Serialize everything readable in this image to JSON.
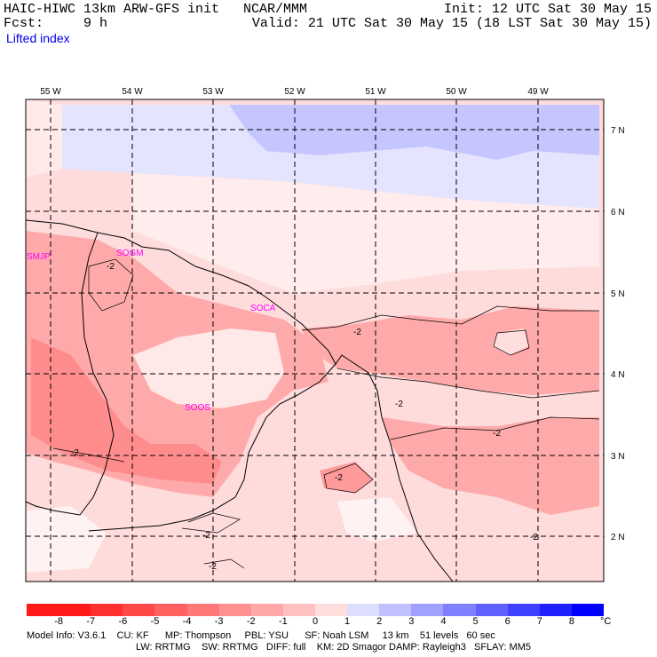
{
  "header": {
    "line1_left": "HAIC-HIWC 13km ARW-GFS init   NCAR/MMM",
    "line1_right": "Init: 12 UTC Sat 30 May 15",
    "line2_left": "Fcst:     9 h",
    "line2_right": "Valid: 21 UTC Sat 30 May 15 (18 LST Sat 30 May 15)",
    "field": "Lifted index"
  },
  "map": {
    "lon_labels": [
      "55 W",
      "54 W",
      "53 W",
      "52 W",
      "51 W",
      "50 W",
      "49 W"
    ],
    "lat_labels": [
      "7 N",
      "6 N",
      "5 N",
      "4 N",
      "3 N",
      "2 N"
    ],
    "stations": [
      "SMJP",
      "SOGM",
      "SOCA",
      "SOOS"
    ],
    "contour_label": "-2"
  },
  "colorbar": {
    "ticks": [
      "-8",
      "-7",
      "-6",
      "-5",
      "-4",
      "-3",
      "-2",
      "-1",
      "0",
      "1",
      "2",
      "3",
      "4",
      "5",
      "6",
      "7",
      "8"
    ],
    "unit": "°C",
    "colors": [
      "#ff1a1a",
      "#ff3030",
      "#ff4848",
      "#ff6060",
      "#ff7878",
      "#ff9090",
      "#ffa8a8",
      "#ffc0c0",
      "#ffdede",
      "#dedeff",
      "#c0c0ff",
      "#a0a0ff",
      "#8080ff",
      "#6060ff",
      "#4040ff",
      "#2020ff",
      "#0000ff"
    ]
  },
  "model_info": {
    "line1": "Model Info: V3.6.1    CU: KF      MP: Thompson     PBL: YSU      SF: Noah LSM     13 km    51 levels   60 sec",
    "line2": "LW: RRTMG    SW: RRTMG   DIFF: full    KM: 2D Smagor DAMP: Rayleigh3   SFLAY: MM5"
  }
}
